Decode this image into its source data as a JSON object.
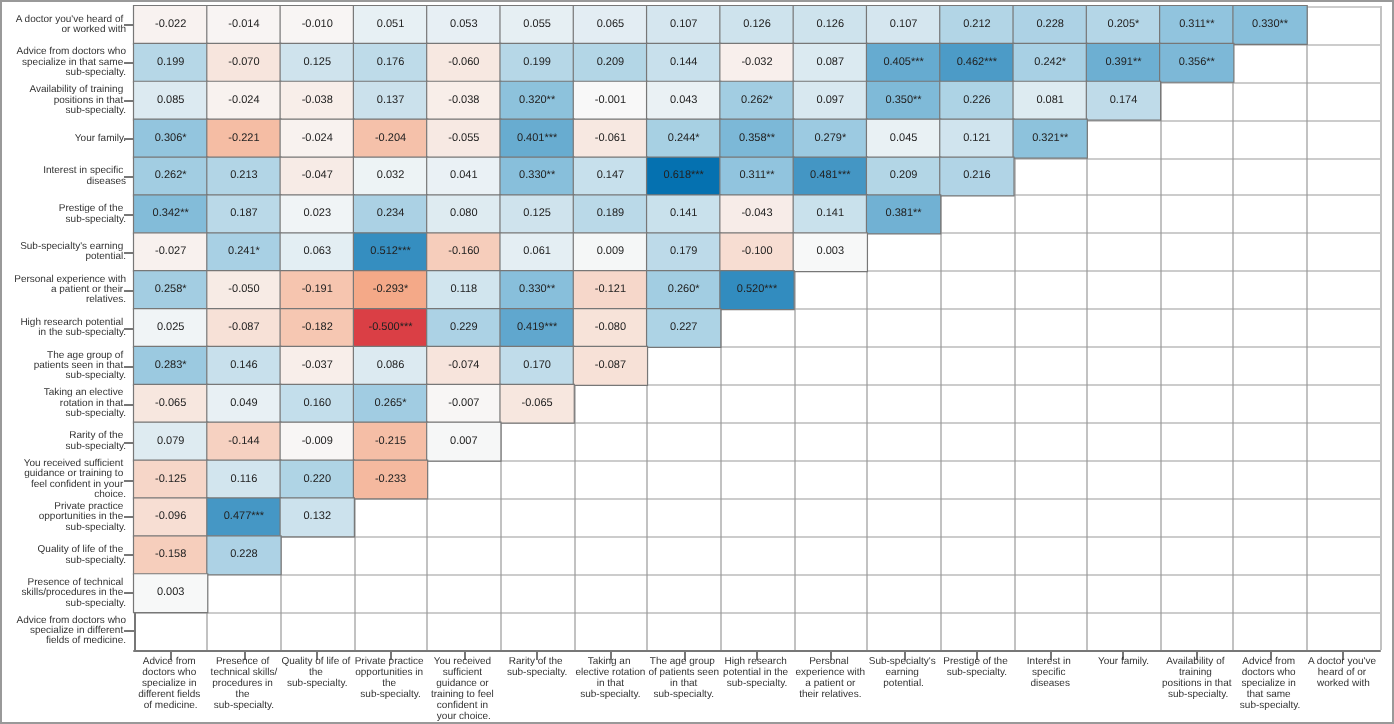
{
  "chart_data": {
    "type": "heatmap",
    "categories": [
      "Advice from doctors who specialize in different fields of medicine.",
      "Presence of technical skills/procedures in the sub-specialty.",
      "Quality of life of the sub-specialty.",
      "Private practice opportunities in the sub-specialty.",
      "You received sufficient guidance or training to feel confident in your choice.",
      "Rarity of the sub-specialty.",
      "Taking an elective rotation in that sub-specialty.",
      "The age group of patients seen in that sub-specialty.",
      "High research potential in the sub-specialty.",
      "Personal experience with a patient or their relatives.",
      "Sub-specialty's earning potential.",
      "Prestige of the sub-specialty.",
      "Interest in specific diseases",
      "Your family.",
      "Availability of training positions in that sub-specialty.",
      "Advice from doctors who specialize in that same sub-specialty.",
      "A doctor you've heard of or worked with"
    ],
    "y_categories": [
      "A doctor you've heard of or worked with",
      "Advice from doctors who specialize in that same sub-specialty.",
      "Availability of training positions in that sub-specialty.",
      "Your family.",
      "Interest in specific diseases",
      "Prestige of the sub-specialty.",
      "Sub-specialty's earning potential.",
      "Personal experience with a patient or their relatives.",
      "High research potential in the sub-specialty.",
      "The age group of patients seen in that sub-specialty.",
      "Taking an elective rotation in that sub-specialty.",
      "Rarity of the sub-specialty.",
      "You received sufficient guidance or training to feel confident in your choice.",
      "Private practice opportunities in the sub-specialty.",
      "Quality of life of the sub-specialty.",
      "Presence of technical skills/procedures in the sub-specialty.",
      "Advice from doctors who specialize in different fields of medicine."
    ],
    "cells": [
      [
        -0.022,
        -0.014,
        -0.01,
        0.051,
        0.053,
        0.055,
        0.065,
        0.107,
        0.126,
        0.126,
        0.107,
        0.212,
        0.228,
        0.205,
        0.311,
        0.33,
        null
      ],
      [
        0.199,
        -0.07,
        0.125,
        0.176,
        -0.06,
        0.199,
        0.209,
        0.144,
        -0.032,
        0.087,
        0.405,
        0.462,
        0.242,
        0.391,
        0.356,
        null,
        null
      ],
      [
        0.085,
        -0.024,
        -0.038,
        0.137,
        -0.038,
        0.32,
        -0.001,
        0.043,
        0.262,
        0.097,
        0.35,
        0.226,
        0.081,
        0.174,
        null,
        null,
        null
      ],
      [
        0.306,
        -0.221,
        -0.024,
        -0.204,
        -0.055,
        0.401,
        -0.061,
        0.244,
        0.358,
        0.279,
        0.045,
        0.121,
        0.321,
        null,
        null,
        null,
        null
      ],
      [
        0.262,
        0.213,
        -0.047,
        0.032,
        0.041,
        0.33,
        0.147,
        0.618,
        0.311,
        0.481,
        0.209,
        0.216,
        null,
        null,
        null,
        null,
        null
      ],
      [
        0.342,
        0.187,
        0.023,
        0.234,
        0.08,
        0.125,
        0.189,
        0.141,
        -0.043,
        0.141,
        0.381,
        null,
        null,
        null,
        null,
        null,
        null
      ],
      [
        -0.027,
        0.241,
        0.063,
        0.512,
        -0.16,
        0.061,
        0.009,
        0.179,
        -0.1,
        0.003,
        null,
        null,
        null,
        null,
        null,
        null,
        null
      ],
      [
        0.258,
        -0.05,
        -0.191,
        -0.293,
        0.118,
        0.33,
        -0.121,
        0.26,
        0.52,
        null,
        null,
        null,
        null,
        null,
        null,
        null,
        null
      ],
      [
        0.025,
        -0.087,
        -0.182,
        -0.5,
        0.229,
        0.419,
        -0.08,
        0.227,
        null,
        null,
        null,
        null,
        null,
        null,
        null,
        null,
        null
      ],
      [
        0.283,
        0.146,
        -0.037,
        0.086,
        -0.074,
        0.17,
        -0.087,
        null,
        null,
        null,
        null,
        null,
        null,
        null,
        null,
        null,
        null
      ],
      [
        -0.065,
        0.049,
        0.16,
        0.265,
        -0.007,
        -0.065,
        null,
        null,
        null,
        null,
        null,
        null,
        null,
        null,
        null,
        null,
        null
      ],
      [
        0.079,
        -0.144,
        -0.009,
        -0.215,
        0.007,
        null,
        null,
        null,
        null,
        null,
        null,
        null,
        null,
        null,
        null,
        null,
        null
      ],
      [
        -0.125,
        0.116,
        0.22,
        -0.233,
        null,
        null,
        null,
        null,
        null,
        null,
        null,
        null,
        null,
        null,
        null,
        null,
        null
      ],
      [
        -0.096,
        0.477,
        0.132,
        null,
        null,
        null,
        null,
        null,
        null,
        null,
        null,
        null,
        null,
        null,
        null,
        null,
        null
      ],
      [
        -0.158,
        0.228,
        null,
        null,
        null,
        null,
        null,
        null,
        null,
        null,
        null,
        null,
        null,
        null,
        null,
        null,
        null
      ],
      [
        0.003,
        null,
        null,
        null,
        null,
        null,
        null,
        null,
        null,
        null,
        null,
        null,
        null,
        null,
        null,
        null,
        null
      ],
      [
        null,
        null,
        null,
        null,
        null,
        null,
        null,
        null,
        null,
        null,
        null,
        null,
        null,
        null,
        null,
        null,
        null
      ]
    ],
    "cell_labels": [
      [
        "-0.022",
        "-0.014",
        "-0.010",
        "0.051",
        "0.053",
        "0.055",
        "0.065",
        "0.107",
        "0.126",
        "0.126",
        "0.107",
        "0.212",
        "0.228",
        "0.205*",
        "0.311**",
        "0.330**",
        null
      ],
      [
        "0.199",
        "-0.070",
        "0.125",
        "0.176",
        "-0.060",
        "0.199",
        "0.209",
        "0.144",
        "-0.032",
        "0.087",
        "0.405***",
        "0.462***",
        "0.242*",
        "0.391**",
        "0.356**",
        null,
        null
      ],
      [
        "0.085",
        "-0.024",
        "-0.038",
        "0.137",
        "-0.038",
        "0.320**",
        "-0.001",
        "0.043",
        "0.262*",
        "0.097",
        "0.350**",
        "0.226",
        "0.081",
        "0.174",
        null,
        null,
        null
      ],
      [
        "0.306*",
        "-0.221",
        "-0.024",
        "-0.204",
        "-0.055",
        "0.401***",
        "-0.061",
        "0.244*",
        "0.358**",
        "0.279*",
        "0.045",
        "0.121",
        "0.321**",
        null,
        null,
        null,
        null
      ],
      [
        "0.262*",
        "0.213",
        "-0.047",
        "0.032",
        "0.041",
        "0.330**",
        "0.147",
        "0.618***",
        "0.311**",
        "0.481***",
        "0.209",
        "0.216",
        null,
        null,
        null,
        null,
        null
      ],
      [
        "0.342**",
        "0.187",
        "0.023",
        "0.234",
        "0.080",
        "0.125",
        "0.189",
        "0.141",
        "-0.043",
        "0.141",
        "0.381**",
        null,
        null,
        null,
        null,
        null,
        null
      ],
      [
        "-0.027",
        "0.241*",
        "0.063",
        "0.512***",
        "-0.160",
        "0.061",
        "0.009",
        "0.179",
        "-0.100",
        "0.003",
        null,
        null,
        null,
        null,
        null,
        null,
        null
      ],
      [
        "0.258*",
        "-0.050",
        "-0.191",
        "-0.293*",
        "0.118",
        "0.330**",
        "-0.121",
        "0.260*",
        "0.520***",
        null,
        null,
        null,
        null,
        null,
        null,
        null,
        null
      ],
      [
        "0.025",
        "-0.087",
        "-0.182",
        "-0.500***",
        "0.229",
        "0.419***",
        "-0.080",
        "0.227",
        null,
        null,
        null,
        null,
        null,
        null,
        null,
        null,
        null
      ],
      [
        "0.283*",
        "0.146",
        "-0.037",
        "0.086",
        "-0.074",
        "0.170",
        "-0.087",
        null,
        null,
        null,
        null,
        null,
        null,
        null,
        null,
        null,
        null
      ],
      [
        "-0.065",
        "0.049",
        "0.160",
        "0.265*",
        "-0.007",
        "-0.065",
        null,
        null,
        null,
        null,
        null,
        null,
        null,
        null,
        null,
        null,
        null
      ],
      [
        "0.079",
        "-0.144",
        "-0.009",
        "-0.215",
        "0.007",
        null,
        null,
        null,
        null,
        null,
        null,
        null,
        null,
        null,
        null,
        null,
        null
      ],
      [
        "-0.125",
        "0.116",
        "0.220",
        "-0.233",
        null,
        null,
        null,
        null,
        null,
        null,
        null,
        null,
        null,
        null,
        null,
        null,
        null
      ],
      [
        "-0.096",
        "0.477***",
        "0.132",
        null,
        null,
        null,
        null,
        null,
        null,
        null,
        null,
        null,
        null,
        null,
        null,
        null,
        null
      ],
      [
        "-0.158",
        "0.228",
        null,
        null,
        null,
        null,
        null,
        null,
        null,
        null,
        null,
        null,
        null,
        null,
        null,
        null,
        null
      ],
      [
        "0.003",
        null,
        null,
        null,
        null,
        null,
        null,
        null,
        null,
        null,
        null,
        null,
        null,
        null,
        null,
        null,
        null
      ],
      [
        null,
        null,
        null,
        null,
        null,
        null,
        null,
        null,
        null,
        null,
        null,
        null,
        null,
        null,
        null,
        null,
        null
      ]
    ]
  }
}
